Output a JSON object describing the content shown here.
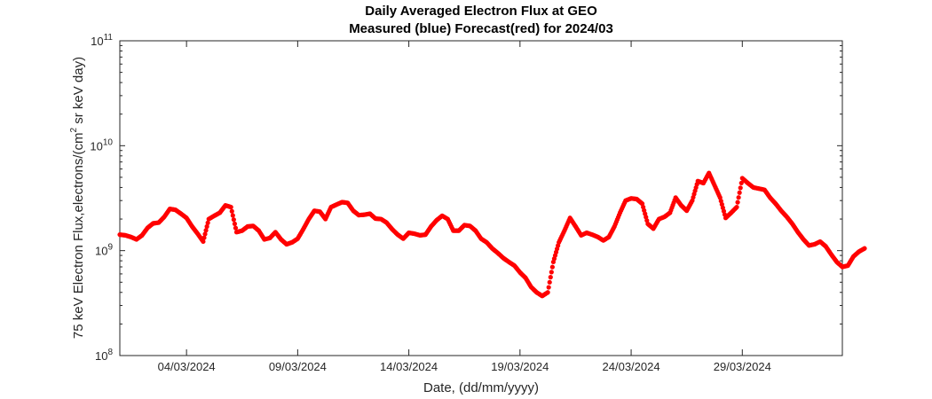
{
  "chart_data": {
    "type": "scatter",
    "title": "Daily Averaged Electron Flux at GEO",
    "subtitle": "Measured (blue) Forecast(red) for 2024/03",
    "xlabel": "Date, (dd/mm/yyyy)",
    "ylabel_main": "75 keV Electron Flux,electrons/(cm",
    "ylabel_sup": "2",
    "ylabel_tail": " sr keV day)",
    "y_scale": "log",
    "ylim": [
      100000000.0,
      100000000000.0
    ],
    "xlim": [
      "2024-03-01 00:00",
      "2024-04-02 12:00"
    ],
    "y_ticks": [
      {
        "value": 100000000.0,
        "base": "10",
        "exp": "8"
      },
      {
        "value": 1000000000.0,
        "base": "10",
        "exp": "9"
      },
      {
        "value": 10000000000.0,
        "base": "10",
        "exp": "10"
      },
      {
        "value": 100000000000.0,
        "base": "10",
        "exp": "11"
      }
    ],
    "x_ticks": [
      "04/03/2024",
      "09/03/2024",
      "14/03/2024",
      "19/03/2024",
      "24/03/2024",
      "29/03/2024"
    ],
    "grid": false,
    "series": [
      {
        "color": "#ff0000",
        "marker": "dot",
        "points": [
          [
            "2024-03-01 00:00",
            1420000000.0
          ],
          [
            "2024-03-01 06:00",
            1400000000.0
          ],
          [
            "2024-03-01 12:00",
            1350000000.0
          ],
          [
            "2024-03-01 18:00",
            1280000000.0
          ],
          [
            "2024-03-02 00:00",
            1400000000.0
          ],
          [
            "2024-03-02 06:00",
            1650000000.0
          ],
          [
            "2024-03-02 12:00",
            1820000000.0
          ],
          [
            "2024-03-02 18:00",
            1850000000.0
          ],
          [
            "2024-03-03 00:00",
            2100000000.0
          ],
          [
            "2024-03-03 06:00",
            2500000000.0
          ],
          [
            "2024-03-03 12:00",
            2450000000.0
          ],
          [
            "2024-03-03 18:00",
            2250000000.0
          ],
          [
            "2024-03-04 00:00",
            2050000000.0
          ],
          [
            "2024-03-04 06:00",
            1700000000.0
          ],
          [
            "2024-03-04 12:00",
            1450000000.0
          ],
          [
            "2024-03-04 18:00",
            1220000000.0
          ],
          [
            "2024-03-05 00:00",
            2000000000.0
          ],
          [
            "2024-03-05 06:00",
            2150000000.0
          ],
          [
            "2024-03-05 12:00",
            2300000000.0
          ],
          [
            "2024-03-05 18:00",
            2700000000.0
          ],
          [
            "2024-03-06 00:00",
            2600000000.0
          ],
          [
            "2024-03-06 06:00",
            1500000000.0
          ],
          [
            "2024-03-06 12:00",
            1550000000.0
          ],
          [
            "2024-03-06 18:00",
            1700000000.0
          ],
          [
            "2024-03-07 00:00",
            1720000000.0
          ],
          [
            "2024-03-07 06:00",
            1550000000.0
          ],
          [
            "2024-03-07 12:00",
            1280000000.0
          ],
          [
            "2024-03-07 18:00",
            1320000000.0
          ],
          [
            "2024-03-08 00:00",
            1500000000.0
          ],
          [
            "2024-03-08 06:00",
            1280000000.0
          ],
          [
            "2024-03-08 12:00",
            1150000000.0
          ],
          [
            "2024-03-08 18:00",
            1200000000.0
          ],
          [
            "2024-03-09 00:00",
            1300000000.0
          ],
          [
            "2024-03-09 06:00",
            1600000000.0
          ],
          [
            "2024-03-09 12:00",
            2000000000.0
          ],
          [
            "2024-03-09 18:00",
            2400000000.0
          ],
          [
            "2024-03-10 00:00",
            2350000000.0
          ],
          [
            "2024-03-10 06:00",
            2000000000.0
          ],
          [
            "2024-03-10 12:00",
            2600000000.0
          ],
          [
            "2024-03-10 18:00",
            2750000000.0
          ],
          [
            "2024-03-11 00:00",
            2900000000.0
          ],
          [
            "2024-03-11 06:00",
            2850000000.0
          ],
          [
            "2024-03-11 12:00",
            2400000000.0
          ],
          [
            "2024-03-11 18:00",
            2180000000.0
          ],
          [
            "2024-03-12 00:00",
            2200000000.0
          ],
          [
            "2024-03-12 06:00",
            2250000000.0
          ],
          [
            "2024-03-12 12:00",
            2020000000.0
          ],
          [
            "2024-03-12 18:00",
            2000000000.0
          ],
          [
            "2024-03-13 00:00",
            1850000000.0
          ],
          [
            "2024-03-13 06:00",
            1600000000.0
          ],
          [
            "2024-03-13 12:00",
            1420000000.0
          ],
          [
            "2024-03-13 18:00",
            1300000000.0
          ],
          [
            "2024-03-14 00:00",
            1480000000.0
          ],
          [
            "2024-03-14 06:00",
            1450000000.0
          ],
          [
            "2024-03-14 12:00",
            1400000000.0
          ],
          [
            "2024-03-14 18:00",
            1420000000.0
          ],
          [
            "2024-03-15 00:00",
            1700000000.0
          ],
          [
            "2024-03-15 06:00",
            1950000000.0
          ],
          [
            "2024-03-15 12:00",
            2150000000.0
          ],
          [
            "2024-03-15 18:00",
            2000000000.0
          ],
          [
            "2024-03-16 00:00",
            1550000000.0
          ],
          [
            "2024-03-16 06:00",
            1550000000.0
          ],
          [
            "2024-03-16 12:00",
            1750000000.0
          ],
          [
            "2024-03-16 18:00",
            1720000000.0
          ],
          [
            "2024-03-17 00:00",
            1550000000.0
          ],
          [
            "2024-03-17 06:00",
            1300000000.0
          ],
          [
            "2024-03-17 12:00",
            1200000000.0
          ],
          [
            "2024-03-17 18:00",
            1050000000.0
          ],
          [
            "2024-03-18 00:00",
            950000000.0
          ],
          [
            "2024-03-18 06:00",
            850000000.0
          ],
          [
            "2024-03-18 12:00",
            780000000.0
          ],
          [
            "2024-03-18 18:00",
            720000000.0
          ],
          [
            "2024-03-19 00:00",
            620000000.0
          ],
          [
            "2024-03-19 06:00",
            550000000.0
          ],
          [
            "2024-03-19 12:00",
            450000000.0
          ],
          [
            "2024-03-19 18:00",
            400000000.0
          ],
          [
            "2024-03-20 00:00",
            370000000.0
          ],
          [
            "2024-03-20 06:00",
            400000000.0
          ],
          [
            "2024-03-20 12:00",
            780000000.0
          ],
          [
            "2024-03-20 18:00",
            1200000000.0
          ],
          [
            "2024-03-21 00:00",
            1550000000.0
          ],
          [
            "2024-03-21 06:00",
            2050000000.0
          ],
          [
            "2024-03-21 12:00",
            1700000000.0
          ],
          [
            "2024-03-21 18:00",
            1400000000.0
          ],
          [
            "2024-03-22 00:00",
            1480000000.0
          ],
          [
            "2024-03-22 06:00",
            1420000000.0
          ],
          [
            "2024-03-22 12:00",
            1350000000.0
          ],
          [
            "2024-03-22 18:00",
            1250000000.0
          ],
          [
            "2024-03-23 00:00",
            1350000000.0
          ],
          [
            "2024-03-23 06:00",
            1700000000.0
          ],
          [
            "2024-03-23 12:00",
            2300000000.0
          ],
          [
            "2024-03-23 18:00",
            3000000000.0
          ],
          [
            "2024-03-24 00:00",
            3150000000.0
          ],
          [
            "2024-03-24 06:00",
            3100000000.0
          ],
          [
            "2024-03-24 12:00",
            2800000000.0
          ],
          [
            "2024-03-24 18:00",
            1800000000.0
          ],
          [
            "2024-03-25 00:00",
            1620000000.0
          ],
          [
            "2024-03-25 06:00",
            2000000000.0
          ],
          [
            "2024-03-25 12:00",
            2100000000.0
          ],
          [
            "2024-03-25 18:00",
            2300000000.0
          ],
          [
            "2024-03-26 00:00",
            3200000000.0
          ],
          [
            "2024-03-26 06:00",
            2700000000.0
          ],
          [
            "2024-03-26 12:00",
            2400000000.0
          ],
          [
            "2024-03-26 18:00",
            3000000000.0
          ],
          [
            "2024-03-27 00:00",
            4600000000.0
          ],
          [
            "2024-03-27 06:00",
            4400000000.0
          ],
          [
            "2024-03-27 12:00",
            5500000000.0
          ],
          [
            "2024-03-27 18:00",
            4200000000.0
          ],
          [
            "2024-03-28 00:00",
            3200000000.0
          ],
          [
            "2024-03-28 06:00",
            2050000000.0
          ],
          [
            "2024-03-28 12:00",
            2300000000.0
          ],
          [
            "2024-03-28 18:00",
            2600000000.0
          ],
          [
            "2024-03-29 00:00",
            4900000000.0
          ],
          [
            "2024-03-29 06:00",
            4400000000.0
          ],
          [
            "2024-03-29 12:00",
            4000000000.0
          ],
          [
            "2024-03-29 18:00",
            3900000000.0
          ],
          [
            "2024-03-30 00:00",
            3800000000.0
          ],
          [
            "2024-03-30 06:00",
            3200000000.0
          ],
          [
            "2024-03-30 12:00",
            2800000000.0
          ],
          [
            "2024-03-30 18:00",
            2400000000.0
          ],
          [
            "2024-03-31 00:00",
            2100000000.0
          ],
          [
            "2024-03-31 06:00",
            1800000000.0
          ],
          [
            "2024-03-31 12:00",
            1500000000.0
          ],
          [
            "2024-03-31 18:00",
            1280000000.0
          ],
          [
            "2024-04-01 00:00",
            1120000000.0
          ],
          [
            "2024-04-01 06:00",
            1150000000.0
          ],
          [
            "2024-04-01 12:00",
            1220000000.0
          ],
          [
            "2024-04-01 18:00",
            1100000000.0
          ],
          [
            "2024-04-02 00:00",
            920000000.0
          ],
          [
            "2024-04-02 06:00",
            780000000.0
          ],
          [
            "2024-04-02 12:00",
            700000000.0
          ],
          [
            "2024-04-02 18:00",
            720000000.0
          ],
          [
            "2024-04-03 00:00",
            880000000.0
          ],
          [
            "2024-04-03 06:00",
            980000000.0
          ],
          [
            "2024-04-03 12:00",
            1050000000.0
          ]
        ]
      }
    ]
  }
}
